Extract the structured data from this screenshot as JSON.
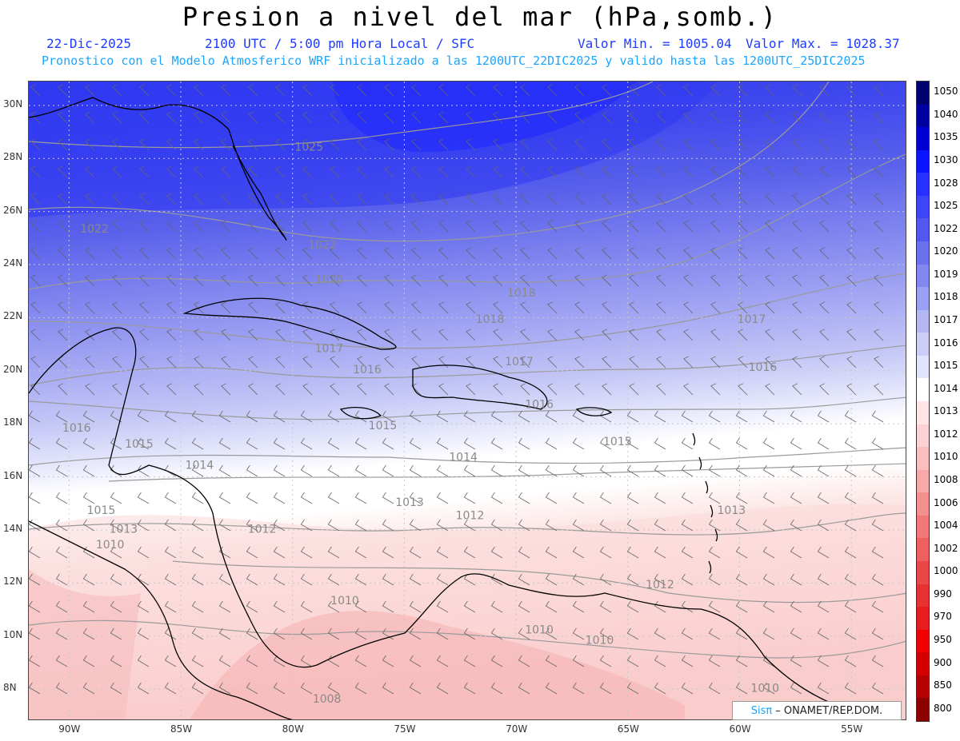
{
  "title": "Presion a nivel del mar (hPa,somb.)",
  "date": "22-Dic-2025",
  "time_text": "2100 UTC / 5:00 pm Hora Local / SFC",
  "min_text": "Valor Min. = 1005.04",
  "max_text": "Valor Max. = 1028.37",
  "forecast_text": "Pronostico con el Modelo Atmosferico WRF inicializado a las 1200UTC_22DIC2025 y valido hasta las  1200UTC_25DIC2025",
  "credit": {
    "logo": "Sisπ",
    "text": "– ONAMET/REP.DOM."
  },
  "lat_labels": [
    "30N",
    "28N",
    "26N",
    "24N",
    "22N",
    "20N",
    "18N",
    "16N",
    "14N",
    "12N",
    "10N",
    "8N"
  ],
  "lon_labels": [
    "90W",
    "85W",
    "80W",
    "75W",
    "70W",
    "65W",
    "60W",
    "55W"
  ],
  "colorbar": {
    "labels": [
      "1050",
      "1040",
      "1035",
      "1030",
      "1028",
      "1025",
      "1022",
      "1020",
      "1019",
      "1018",
      "1017",
      "1016",
      "1015",
      "1014",
      "1013",
      "1012",
      "1010",
      "1008",
      "1006",
      "1004",
      "1002",
      "1000",
      "990",
      "970",
      "950",
      "900",
      "850",
      "800"
    ],
    "colors": [
      "#00006e",
      "#0000a0",
      "#0000d2",
      "#0a14ff",
      "#2832ff",
      "#3c46f5",
      "#5058f0",
      "#6a70ee",
      "#8288ef",
      "#9ca0f2",
      "#b4b8f5",
      "#ccceF8",
      "#e2e4fb",
      "#ffffff",
      "#ffe6e6",
      "#fdd2d2",
      "#fbbebe",
      "#f8a8a8",
      "#f59090",
      "#f27878",
      "#ee6060",
      "#ea4848",
      "#e83232",
      "#e81e1e",
      "#f00000",
      "#d20000",
      "#b40000",
      "#8c0000"
    ]
  },
  "contour_labels": [
    {
      "text": "1025",
      "lon": -79.9,
      "lat": 28.3
    },
    {
      "text": "1022",
      "lon": -89.5,
      "lat": 25.2
    },
    {
      "text": "1022",
      "lon": -79.3,
      "lat": 24.6
    },
    {
      "text": "1020",
      "lon": -79.0,
      "lat": 23.3
    },
    {
      "text": "1018",
      "lon": -70.4,
      "lat": 22.8
    },
    {
      "text": "1018",
      "lon": -71.8,
      "lat": 21.8
    },
    {
      "text": "1017",
      "lon": -60.1,
      "lat": 21.8
    },
    {
      "text": "1017",
      "lon": -79.0,
      "lat": 20.7
    },
    {
      "text": "1016",
      "lon": -77.3,
      "lat": 19.9
    },
    {
      "text": "1017",
      "lon": -70.5,
      "lat": 20.2
    },
    {
      "text": "1016",
      "lon": -59.6,
      "lat": 20.0
    },
    {
      "text": "1016",
      "lon": -69.6,
      "lat": 18.6
    },
    {
      "text": "1015",
      "lon": -76.6,
      "lat": 17.8
    },
    {
      "text": "1016",
      "lon": -90.3,
      "lat": 17.7
    },
    {
      "text": "1015",
      "lon": -87.5,
      "lat": 17.1
    },
    {
      "text": "1015",
      "lon": -66.1,
      "lat": 17.2
    },
    {
      "text": "1014",
      "lon": -73.0,
      "lat": 16.6
    },
    {
      "text": "1014",
      "lon": -84.8,
      "lat": 16.3
    },
    {
      "text": "1013",
      "lon": -75.4,
      "lat": 14.9
    },
    {
      "text": "1012",
      "lon": -72.7,
      "lat": 14.4
    },
    {
      "text": "1013",
      "lon": -61.0,
      "lat": 14.6
    },
    {
      "text": "1015",
      "lon": -89.2,
      "lat": 14.6
    },
    {
      "text": "1013",
      "lon": -88.2,
      "lat": 13.9
    },
    {
      "text": "1012",
      "lon": -82.0,
      "lat": 13.9
    },
    {
      "text": "1010",
      "lon": -88.8,
      "lat": 13.3
    },
    {
      "text": "1012",
      "lon": -64.2,
      "lat": 11.8
    },
    {
      "text": "1010",
      "lon": -78.3,
      "lat": 11.2
    },
    {
      "text": "1010",
      "lon": -69.6,
      "lat": 10.1
    },
    {
      "text": "1010",
      "lon": -66.9,
      "lat": 9.7
    },
    {
      "text": "1008",
      "lon": -79.1,
      "lat": 7.5
    },
    {
      "text": "1010",
      "lon": -59.5,
      "lat": 7.9
    }
  ]
}
